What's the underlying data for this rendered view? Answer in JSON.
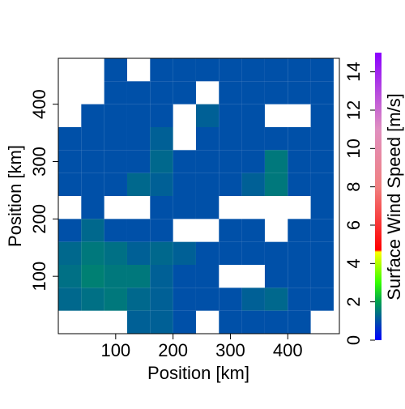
{
  "chart_data": {
    "type": "heatmap",
    "x_label": "Position [km]",
    "y_label": "Position [km]",
    "colorbar_label": "Surface Wind Speed [m/s]",
    "x": [
      20,
      60,
      100,
      140,
      180,
      220,
      260,
      300,
      340,
      380,
      420,
      460
    ],
    "y": [
      460,
      420,
      380,
      340,
      300,
      260,
      220,
      180,
      140,
      100,
      60,
      20
    ],
    "cell_size": 40,
    "z": [
      [
        null,
        null,
        1,
        null,
        1,
        1,
        1,
        1,
        1,
        1,
        1,
        1
      ],
      [
        null,
        null,
        1,
        1,
        1,
        1,
        null,
        1,
        1,
        1,
        1,
        1
      ],
      [
        null,
        1,
        1,
        1,
        1,
        null,
        1.2,
        1,
        1,
        null,
        null,
        1
      ],
      [
        1,
        1,
        1,
        1,
        1.2,
        null,
        1,
        1,
        1,
        1,
        1,
        1
      ],
      [
        1,
        1,
        1,
        1,
        1.3,
        1,
        1,
        1,
        1,
        1.5,
        1,
        1
      ],
      [
        1,
        1,
        1,
        1.3,
        1.2,
        1,
        1,
        1,
        1.2,
        1.5,
        1,
        1
      ],
      [
        null,
        1,
        null,
        null,
        1,
        1,
        1,
        null,
        null,
        null,
        null,
        1
      ],
      [
        1,
        1.3,
        1,
        1,
        1,
        null,
        null,
        1,
        1,
        null,
        1,
        1
      ],
      [
        1.3,
        1.5,
        1.4,
        1.2,
        1.3,
        1.2,
        1,
        1,
        1,
        1,
        1,
        1
      ],
      [
        1.4,
        1.6,
        1.5,
        1.5,
        1.2,
        1,
        1,
        null,
        null,
        1,
        1,
        1
      ],
      [
        1.3,
        1.4,
        1.5,
        1.3,
        1.2,
        1,
        1,
        1,
        1.2,
        1.3,
        1,
        1
      ],
      [
        null,
        null,
        null,
        1.2,
        1.2,
        1,
        null,
        1,
        1,
        1,
        1,
        null
      ]
    ],
    "xlim": [
      0,
      490
    ],
    "ylim": [
      0,
      480
    ],
    "xticks": [
      100,
      200,
      300,
      400
    ],
    "yticks": [
      100,
      200,
      300,
      400
    ],
    "clim": [
      0,
      15
    ],
    "cticks": [
      0,
      2,
      4,
      6,
      8,
      10,
      12,
      14
    ],
    "colorscale": [
      [
        0,
        "#0000ff"
      ],
      [
        2,
        "#00a050"
      ],
      [
        3,
        "#33ff00"
      ],
      [
        4.6,
        "#ffff00"
      ],
      [
        4.7,
        "#ff0000"
      ],
      [
        8,
        "#f08080"
      ],
      [
        11,
        "#e090c0"
      ],
      [
        15,
        "#8a00ff"
      ]
    ]
  }
}
